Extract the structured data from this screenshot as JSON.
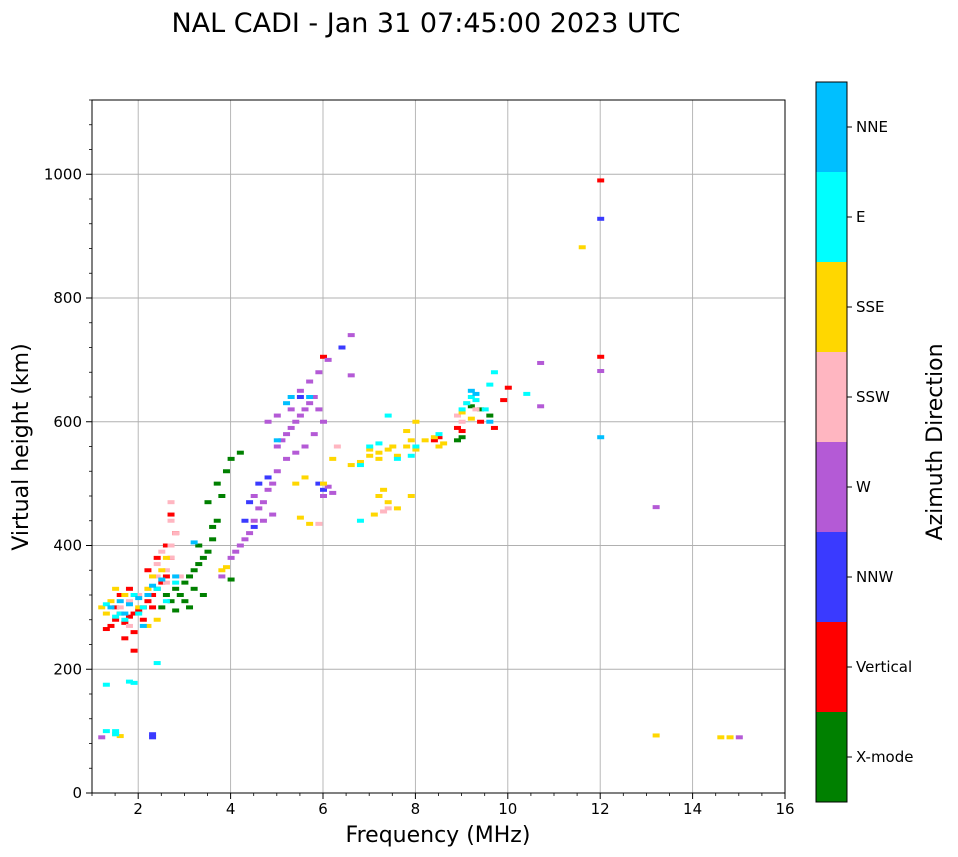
{
  "chart_data": {
    "type": "scatter",
    "title": "NAL CADI - Jan 31 07:45:00 2023 UTC",
    "xlabel": "Frequency (MHz)",
    "ylabel": "Virtual height (km)",
    "xlim": [
      1,
      16
    ],
    "ylim": [
      0,
      1120
    ],
    "xticks": [
      2,
      4,
      6,
      8,
      10,
      12,
      14,
      16
    ],
    "yticks": [
      0,
      200,
      400,
      600,
      800,
      1000
    ],
    "grid": true,
    "colorbar": {
      "label": "Azimuth Direction",
      "categories": [
        {
          "name": "X-mode",
          "color": "#008000"
        },
        {
          "name": "Vertical",
          "color": "#ff0000"
        },
        {
          "name": "NNW",
          "color": "#3a3aff"
        },
        {
          "name": "W",
          "color": "#b45ad6"
        },
        {
          "name": "SSW",
          "color": "#ffb6c1"
        },
        {
          "name": "SSE",
          "color": "#ffd700"
        },
        {
          "name": "E",
          "color": "#00ffff"
        },
        {
          "name": "NNE",
          "color": "#00bfff"
        }
      ]
    },
    "series": [
      {
        "name": "X-mode",
        "color": "#008000",
        "points": [
          [
            2.6,
            320
          ],
          [
            2.7,
            310
          ],
          [
            2.8,
            330
          ],
          [
            2.9,
            320
          ],
          [
            3.0,
            310
          ],
          [
            3.0,
            340
          ],
          [
            3.1,
            350
          ],
          [
            3.2,
            360
          ],
          [
            3.2,
            330
          ],
          [
            3.3,
            370
          ],
          [
            3.4,
            380
          ],
          [
            3.5,
            390
          ],
          [
            3.6,
            410
          ],
          [
            3.6,
            430
          ],
          [
            3.7,
            440
          ],
          [
            3.8,
            480
          ],
          [
            3.9,
            520
          ],
          [
            4.0,
            540
          ],
          [
            4.0,
            345
          ],
          [
            3.4,
            320
          ],
          [
            2.5,
            300
          ],
          [
            2.8,
            295
          ],
          [
            3.1,
            300
          ],
          [
            3.3,
            400
          ],
          [
            3.5,
            470
          ],
          [
            3.7,
            500
          ],
          [
            4.2,
            550
          ],
          [
            9.6,
            610
          ],
          [
            9.4,
            620
          ],
          [
            9.2,
            625
          ],
          [
            9.0,
            575
          ],
          [
            8.9,
            570
          ]
        ]
      },
      {
        "name": "Vertical",
        "color": "#ff0000",
        "points": [
          [
            1.4,
            270
          ],
          [
            1.5,
            280
          ],
          [
            1.6,
            290
          ],
          [
            1.7,
            275
          ],
          [
            1.8,
            285
          ],
          [
            1.9,
            290
          ],
          [
            2.0,
            295
          ],
          [
            2.1,
            300
          ],
          [
            2.2,
            310
          ],
          [
            2.3,
            320
          ],
          [
            2.4,
            330
          ],
          [
            2.5,
            340
          ],
          [
            2.6,
            350
          ],
          [
            2.7,
            380
          ],
          [
            2.8,
            420
          ],
          [
            2.7,
            450
          ],
          [
            1.5,
            300
          ],
          [
            1.6,
            320
          ],
          [
            1.8,
            330
          ],
          [
            2.2,
            360
          ],
          [
            2.4,
            380
          ],
          [
            2.6,
            400
          ],
          [
            1.9,
            260
          ],
          [
            1.9,
            230
          ],
          [
            1.7,
            250
          ],
          [
            1.3,
            265
          ],
          [
            2.1,
            280
          ],
          [
            2.3,
            300
          ],
          [
            8.4,
            570
          ],
          [
            8.5,
            575
          ],
          [
            8.9,
            590
          ],
          [
            9.0,
            585
          ],
          [
            9.4,
            600
          ],
          [
            9.7,
            590
          ],
          [
            9.9,
            635
          ],
          [
            10.0,
            655
          ],
          [
            12.0,
            705
          ],
          [
            12.0,
            990
          ],
          [
            6.0,
            705
          ]
        ]
      },
      {
        "name": "NNW",
        "color": "#3a3aff",
        "points": [
          [
            4.4,
            470
          ],
          [
            4.6,
            500
          ],
          [
            4.8,
            510
          ],
          [
            4.3,
            440
          ],
          [
            5.9,
            500
          ],
          [
            6.0,
            490
          ],
          [
            5.5,
            640
          ],
          [
            12.0,
            928
          ],
          [
            6.4,
            720
          ],
          [
            2.3,
            95
          ],
          [
            2.3,
            90
          ],
          [
            4.5,
            430
          ]
        ]
      },
      {
        "name": "W",
        "color": "#b45ad6",
        "points": [
          [
            3.8,
            350
          ],
          [
            4.0,
            380
          ],
          [
            4.1,
            390
          ],
          [
            4.2,
            400
          ],
          [
            4.3,
            410
          ],
          [
            4.4,
            420
          ],
          [
            4.5,
            440
          ],
          [
            4.6,
            460
          ],
          [
            4.7,
            470
          ],
          [
            4.8,
            490
          ],
          [
            4.9,
            500
          ],
          [
            5.0,
            520
          ],
          [
            5.0,
            560
          ],
          [
            5.1,
            570
          ],
          [
            5.2,
            580
          ],
          [
            5.3,
            590
          ],
          [
            5.4,
            600
          ],
          [
            5.5,
            610
          ],
          [
            5.6,
            620
          ],
          [
            5.7,
            630
          ],
          [
            5.8,
            640
          ],
          [
            5.9,
            620
          ],
          [
            6.0,
            600
          ],
          [
            5.2,
            540
          ],
          [
            5.4,
            550
          ],
          [
            5.6,
            560
          ],
          [
            5.8,
            580
          ],
          [
            4.8,
            600
          ],
          [
            5.0,
            610
          ],
          [
            5.3,
            620
          ],
          [
            5.5,
            650
          ],
          [
            5.7,
            665
          ],
          [
            5.9,
            680
          ],
          [
            6.1,
            700
          ],
          [
            6.6,
            740
          ],
          [
            6.6,
            675
          ],
          [
            6.1,
            495
          ],
          [
            6.2,
            485
          ],
          [
            6.0,
            480
          ],
          [
            10.7,
            625
          ],
          [
            10.7,
            695
          ],
          [
            13.2,
            462
          ],
          [
            12.0,
            682
          ],
          [
            15.0,
            90
          ],
          [
            1.2,
            90
          ],
          [
            4.5,
            480
          ],
          [
            4.9,
            450
          ],
          [
            4.7,
            440
          ]
        ]
      },
      {
        "name": "SSW",
        "color": "#ffb6c1",
        "points": [
          [
            2.6,
            360
          ],
          [
            2.7,
            380
          ],
          [
            2.7,
            400
          ],
          [
            2.8,
            420
          ],
          [
            2.7,
            440
          ],
          [
            2.7,
            470
          ],
          [
            2.5,
            390
          ],
          [
            2.4,
            370
          ],
          [
            2.6,
            340
          ],
          [
            2.9,
            350
          ],
          [
            2.2,
            330
          ],
          [
            2.0,
            320
          ],
          [
            1.8,
            310
          ],
          [
            1.6,
            300
          ],
          [
            7.4,
            460
          ],
          [
            7.3,
            455
          ],
          [
            8.9,
            610
          ],
          [
            9.1,
            630
          ],
          [
            9.3,
            620
          ],
          [
            9.0,
            600
          ],
          [
            6.3,
            560
          ],
          [
            5.9,
            435
          ],
          [
            1.8,
            270
          ],
          [
            2.4,
            350
          ]
        ]
      },
      {
        "name": "SSE",
        "color": "#ffd700",
        "points": [
          [
            1.4,
            310
          ],
          [
            1.5,
            330
          ],
          [
            1.7,
            320
          ],
          [
            2.0,
            300
          ],
          [
            2.2,
            330
          ],
          [
            2.3,
            350
          ],
          [
            2.5,
            360
          ],
          [
            2.4,
            280
          ],
          [
            2.2,
            270
          ],
          [
            2.6,
            380
          ],
          [
            1.5,
            95
          ],
          [
            1.6,
            92
          ],
          [
            6.2,
            540
          ],
          [
            6.6,
            530
          ],
          [
            6.8,
            535
          ],
          [
            7.0,
            545
          ],
          [
            7.2,
            550
          ],
          [
            7.4,
            555
          ],
          [
            7.6,
            545
          ],
          [
            7.8,
            560
          ],
          [
            8.0,
            555
          ],
          [
            8.2,
            570
          ],
          [
            8.4,
            575
          ],
          [
            8.6,
            565
          ],
          [
            7.0,
            555
          ],
          [
            7.2,
            540
          ],
          [
            7.5,
            560
          ],
          [
            7.9,
            570
          ],
          [
            7.2,
            480
          ],
          [
            7.4,
            470
          ],
          [
            7.3,
            490
          ],
          [
            7.6,
            460
          ],
          [
            7.1,
            450
          ],
          [
            7.9,
            480
          ],
          [
            7.8,
            585
          ],
          [
            8.0,
            600
          ],
          [
            9.0,
            615
          ],
          [
            9.2,
            605
          ],
          [
            8.5,
            560
          ],
          [
            11.6,
            882
          ],
          [
            13.2,
            93
          ],
          [
            14.6,
            90
          ],
          [
            14.8,
            90
          ],
          [
            5.4,
            500
          ],
          [
            5.6,
            510
          ],
          [
            5.7,
            435
          ],
          [
            5.5,
            445
          ],
          [
            6.0,
            500
          ],
          [
            3.8,
            360
          ],
          [
            3.9,
            365
          ],
          [
            1.3,
            290
          ],
          [
            1.2,
            300
          ]
        ]
      },
      {
        "name": "E",
        "color": "#00ffff",
        "points": [
          [
            1.5,
            285
          ],
          [
            1.6,
            290
          ],
          [
            1.7,
            280
          ],
          [
            2.0,
            290
          ],
          [
            2.1,
            300
          ],
          [
            1.9,
            320
          ],
          [
            2.4,
            330
          ],
          [
            2.6,
            310
          ],
          [
            2.8,
            340
          ],
          [
            1.3,
            305
          ],
          [
            1.8,
            180
          ],
          [
            1.9,
            178
          ],
          [
            1.3,
            175
          ],
          [
            2.4,
            210
          ],
          [
            2.4,
            330
          ],
          [
            6.8,
            440
          ],
          [
            7.0,
            560
          ],
          [
            7.2,
            565
          ],
          [
            7.6,
            540
          ],
          [
            7.9,
            545
          ],
          [
            8.0,
            560
          ],
          [
            8.5,
            580
          ],
          [
            7.4,
            610
          ],
          [
            9.0,
            620
          ],
          [
            9.1,
            630
          ],
          [
            9.2,
            640
          ],
          [
            9.3,
            635
          ],
          [
            9.5,
            620
          ],
          [
            9.6,
            660
          ],
          [
            9.7,
            680
          ],
          [
            10.4,
            645
          ],
          [
            1.3,
            100
          ],
          [
            1.5,
            100
          ],
          [
            1.5,
            95
          ],
          [
            6.8,
            530
          ]
        ]
      },
      {
        "name": "NNE",
        "color": "#00bfff",
        "points": [
          [
            1.4,
            300
          ],
          [
            1.6,
            310
          ],
          [
            1.8,
            305
          ],
          [
            2.0,
            315
          ],
          [
            2.2,
            320
          ],
          [
            2.3,
            335
          ],
          [
            2.5,
            345
          ],
          [
            2.8,
            350
          ],
          [
            3.2,
            405
          ],
          [
            5.3,
            640
          ],
          [
            5.2,
            630
          ],
          [
            5.0,
            570
          ],
          [
            5.7,
            640
          ],
          [
            9.2,
            650
          ],
          [
            9.3,
            645
          ],
          [
            9.6,
            600
          ],
          [
            12.0,
            575
          ],
          [
            2.1,
            270
          ],
          [
            1.7,
            290
          ]
        ]
      }
    ]
  }
}
